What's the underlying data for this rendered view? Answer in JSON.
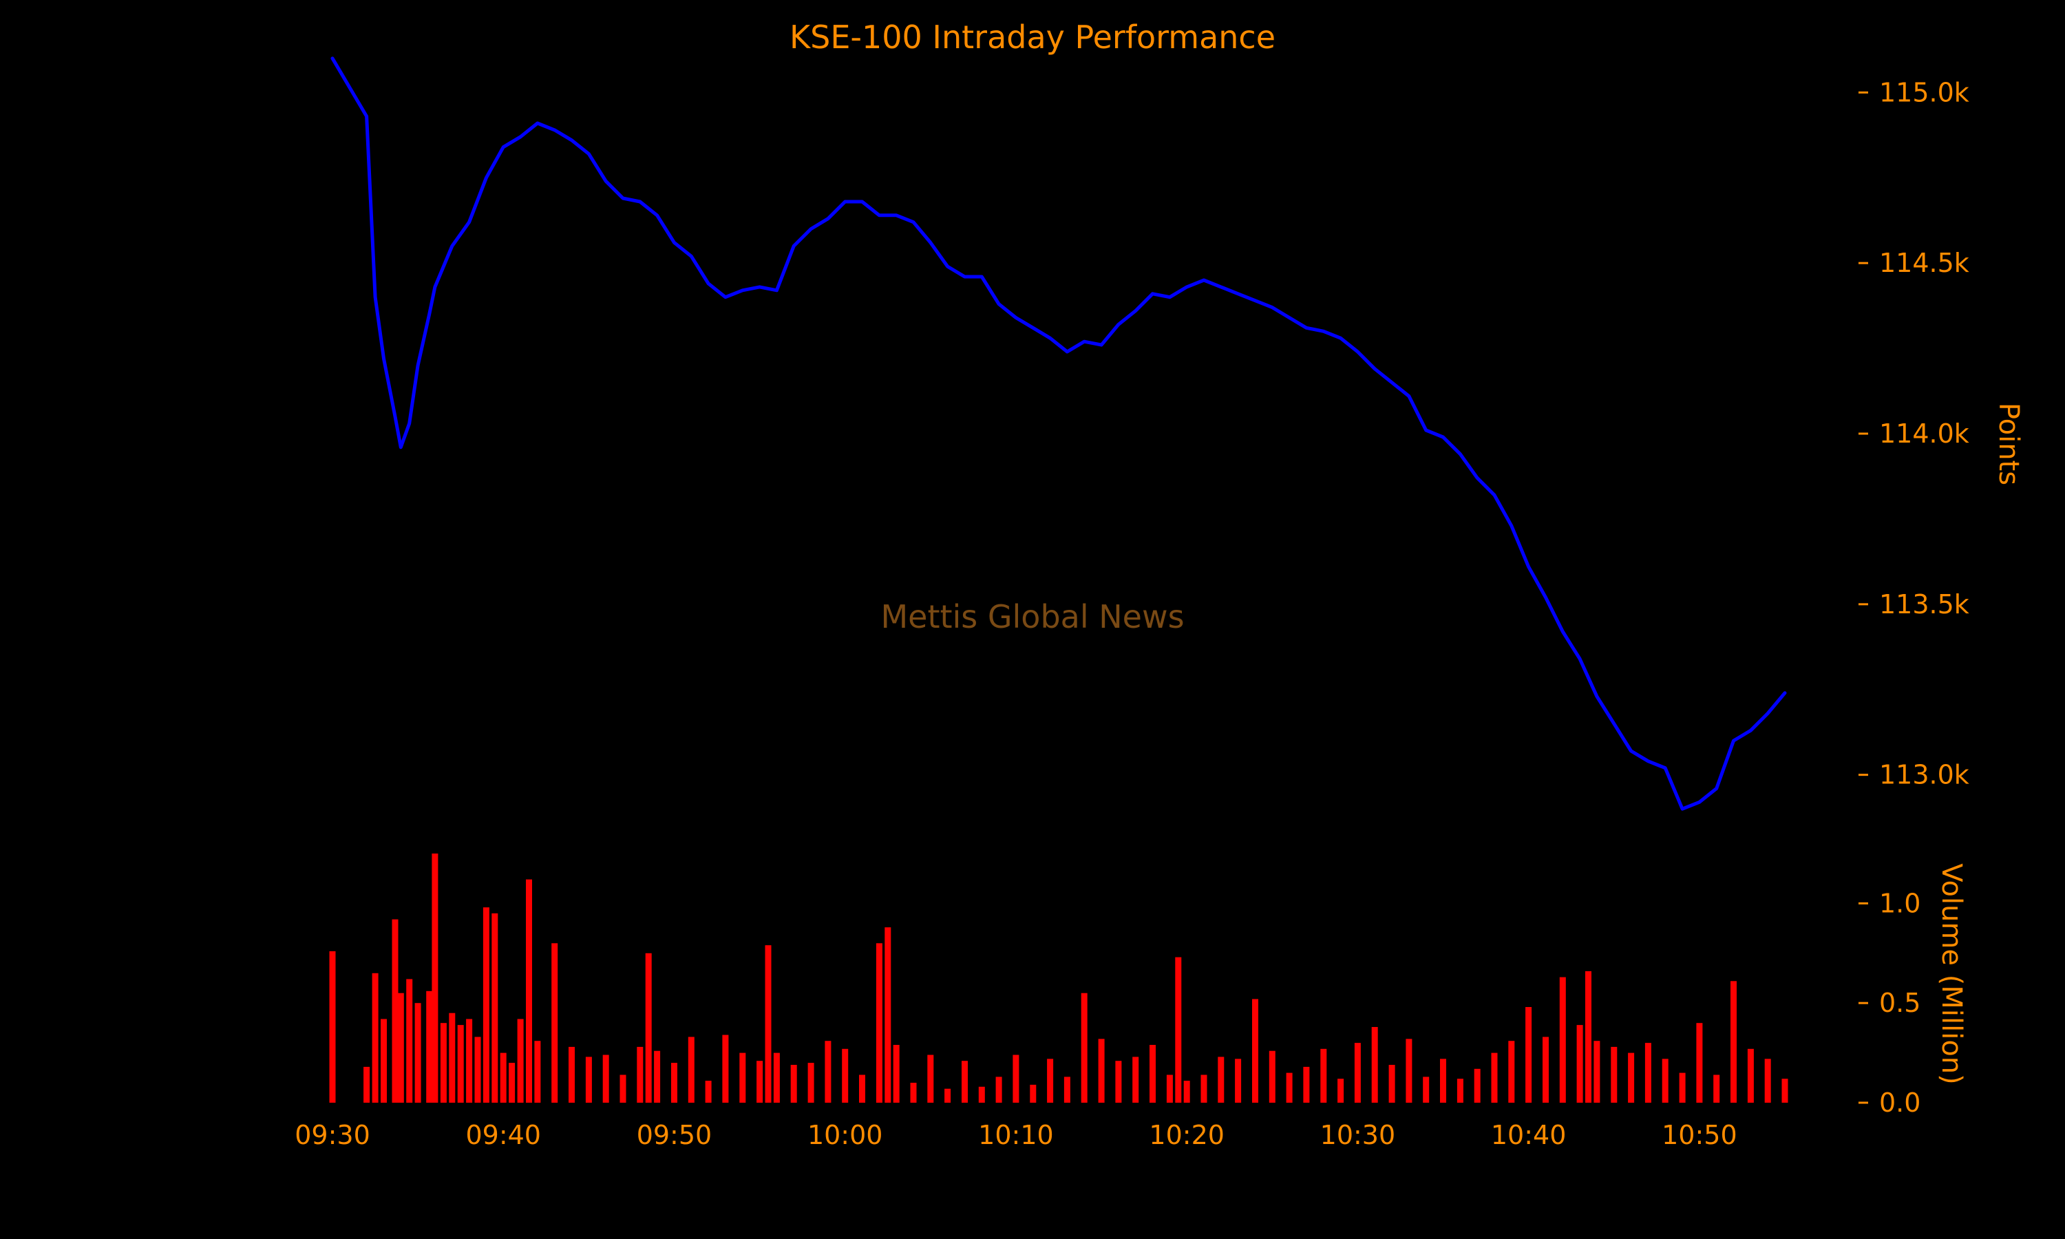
{
  "colors": {
    "background": "#000000",
    "text": "#FF8C00",
    "price_line": "#0000FF",
    "volume_bars": "#FF0000",
    "watermark": "#7A4A14"
  },
  "watermark": "Mettis Global News",
  "chart_data": {
    "type": "line",
    "title": "KSE-100 Intraday Performance",
    "xlabel": "",
    "x_ticks": [
      "09:30",
      "09:40",
      "09:50",
      "10:00",
      "10:10",
      "10:20",
      "10:30",
      "10:40",
      "10:50"
    ],
    "x_range": [
      "09:30",
      "10:55"
    ],
    "grid": false,
    "legend": "none",
    "price": {
      "ylabel": "Points",
      "ylim": [
        112850,
        115150
      ],
      "y_ticks": [
        {
          "value": 113000,
          "label": "113.0k"
        },
        {
          "value": 113500,
          "label": "113.5k"
        },
        {
          "value": 114000,
          "label": "114.0k"
        },
        {
          "value": 114500,
          "label": "114.5k"
        },
        {
          "value": 115000,
          "label": "115.0k"
        }
      ],
      "points": [
        [
          "09:30",
          115100
        ],
        [
          "09:32",
          114930
        ],
        [
          "09:32:30",
          114400
        ],
        [
          "09:33",
          114220
        ],
        [
          "09:33:40",
          114050
        ],
        [
          "09:34",
          113960
        ],
        [
          "09:34:30",
          114030
        ],
        [
          "09:35",
          114200
        ],
        [
          "09:35:40",
          114350
        ],
        [
          "09:36",
          114430
        ],
        [
          "09:37",
          114550
        ],
        [
          "09:38",
          114620
        ],
        [
          "09:39",
          114750
        ],
        [
          "09:40",
          114840
        ],
        [
          "09:41",
          114870
        ],
        [
          "09:42",
          114910
        ],
        [
          "09:43",
          114890
        ],
        [
          "09:44",
          114860
        ],
        [
          "09:45",
          114820
        ],
        [
          "09:46",
          114740
        ],
        [
          "09:47",
          114690
        ],
        [
          "09:48",
          114680
        ],
        [
          "09:49",
          114640
        ],
        [
          "09:50",
          114560
        ],
        [
          "09:51",
          114520
        ],
        [
          "09:52",
          114440
        ],
        [
          "09:53",
          114400
        ],
        [
          "09:54",
          114420
        ],
        [
          "09:55",
          114430
        ],
        [
          "09:56",
          114420
        ],
        [
          "09:57",
          114550
        ],
        [
          "09:58",
          114600
        ],
        [
          "09:59",
          114630
        ],
        [
          "10:00",
          114680
        ],
        [
          "10:01",
          114680
        ],
        [
          "10:02",
          114640
        ],
        [
          "10:03",
          114640
        ],
        [
          "10:04",
          114620
        ],
        [
          "10:05",
          114560
        ],
        [
          "10:06",
          114490
        ],
        [
          "10:07",
          114460
        ],
        [
          "10:08",
          114460
        ],
        [
          "10:09",
          114380
        ],
        [
          "10:10",
          114340
        ],
        [
          "10:11",
          114310
        ],
        [
          "10:12",
          114280
        ],
        [
          "10:13",
          114240
        ],
        [
          "10:14",
          114270
        ],
        [
          "10:15",
          114260
        ],
        [
          "10:16",
          114320
        ],
        [
          "10:17",
          114360
        ],
        [
          "10:18",
          114410
        ],
        [
          "10:19",
          114400
        ],
        [
          "10:20",
          114430
        ],
        [
          "10:21",
          114450
        ],
        [
          "10:22",
          114430
        ],
        [
          "10:23",
          114410
        ],
        [
          "10:24",
          114390
        ],
        [
          "10:25",
          114370
        ],
        [
          "10:26",
          114340
        ],
        [
          "10:27",
          114310
        ],
        [
          "10:28",
          114300
        ],
        [
          "10:29",
          114280
        ],
        [
          "10:30",
          114240
        ],
        [
          "10:31",
          114190
        ],
        [
          "10:32",
          114150
        ],
        [
          "10:33",
          114110
        ],
        [
          "10:34",
          114010
        ],
        [
          "10:35",
          113990
        ],
        [
          "10:36",
          113940
        ],
        [
          "10:37",
          113870
        ],
        [
          "10:38",
          113820
        ],
        [
          "10:39",
          113730
        ],
        [
          "10:40",
          113610
        ],
        [
          "10:41",
          113520
        ],
        [
          "10:42",
          113420
        ],
        [
          "10:43",
          113340
        ],
        [
          "10:44",
          113230
        ],
        [
          "10:45",
          113150
        ],
        [
          "10:46",
          113070
        ],
        [
          "10:47",
          113040
        ],
        [
          "10:48",
          113020
        ],
        [
          "10:49",
          112900
        ],
        [
          "10:50",
          112920
        ],
        [
          "10:51",
          112960
        ],
        [
          "10:52",
          113100
        ],
        [
          "10:53",
          113130
        ],
        [
          "10:54",
          113180
        ],
        [
          "10:55",
          113240
        ]
      ]
    },
    "volume": {
      "ylabel": "Volume (Million)",
      "ylim": [
        0,
        1.25
      ],
      "y_ticks": [
        {
          "value": 0,
          "label": "0.0"
        },
        {
          "value": 0.5,
          "label": "0.5"
        },
        {
          "value": 1.0,
          "label": "1.0"
        }
      ],
      "bars": [
        [
          "09:30",
          0.76
        ],
        [
          "09:32",
          0.18
        ],
        [
          "09:32:30",
          0.65
        ],
        [
          "09:33",
          0.42
        ],
        [
          "09:33:40",
          0.92
        ],
        [
          "09:34",
          0.55
        ],
        [
          "09:34:30",
          0.62
        ],
        [
          "09:35",
          0.5
        ],
        [
          "09:35:40",
          0.56
        ],
        [
          "09:36",
          1.25
        ],
        [
          "09:36:30",
          0.4
        ],
        [
          "09:37",
          0.45
        ],
        [
          "09:37:30",
          0.39
        ],
        [
          "09:38",
          0.42
        ],
        [
          "09:38:30",
          0.33
        ],
        [
          "09:39",
          0.98
        ],
        [
          "09:39:30",
          0.95
        ],
        [
          "09:40",
          0.25
        ],
        [
          "09:40:30",
          0.2
        ],
        [
          "09:41",
          0.42
        ],
        [
          "09:41:30",
          1.12
        ],
        [
          "09:42",
          0.31
        ],
        [
          "09:43",
          0.8
        ],
        [
          "09:44",
          0.28
        ],
        [
          "09:45",
          0.23
        ],
        [
          "09:46",
          0.24
        ],
        [
          "09:47",
          0.14
        ],
        [
          "09:48",
          0.28
        ],
        [
          "09:48:30",
          0.75
        ],
        [
          "09:49",
          0.26
        ],
        [
          "09:50",
          0.2
        ],
        [
          "09:51",
          0.33
        ],
        [
          "09:52",
          0.11
        ],
        [
          "09:53",
          0.34
        ],
        [
          "09:54",
          0.25
        ],
        [
          "09:55",
          0.21
        ],
        [
          "09:55:30",
          0.79
        ],
        [
          "09:56",
          0.25
        ],
        [
          "09:57",
          0.19
        ],
        [
          "09:58",
          0.2
        ],
        [
          "09:59",
          0.31
        ],
        [
          "10:00",
          0.27
        ],
        [
          "10:01",
          0.14
        ],
        [
          "10:02",
          0.8
        ],
        [
          "10:02:30",
          0.88
        ],
        [
          "10:03",
          0.29
        ],
        [
          "10:04",
          0.1
        ],
        [
          "10:05",
          0.24
        ],
        [
          "10:06",
          0.07
        ],
        [
          "10:07",
          0.21
        ],
        [
          "10:08",
          0.08
        ],
        [
          "10:09",
          0.13
        ],
        [
          "10:10",
          0.24
        ],
        [
          "10:11",
          0.09
        ],
        [
          "10:12",
          0.22
        ],
        [
          "10:13",
          0.13
        ],
        [
          "10:14",
          0.55
        ],
        [
          "10:15",
          0.32
        ],
        [
          "10:16",
          0.21
        ],
        [
          "10:17",
          0.23
        ],
        [
          "10:18",
          0.29
        ],
        [
          "10:19",
          0.14
        ],
        [
          "10:19:30",
          0.73
        ],
        [
          "10:20",
          0.11
        ],
        [
          "10:21",
          0.14
        ],
        [
          "10:22",
          0.23
        ],
        [
          "10:23",
          0.22
        ],
        [
          "10:24",
          0.52
        ],
        [
          "10:25",
          0.26
        ],
        [
          "10:26",
          0.15
        ],
        [
          "10:27",
          0.18
        ],
        [
          "10:28",
          0.27
        ],
        [
          "10:29",
          0.12
        ],
        [
          "10:30",
          0.3
        ],
        [
          "10:31",
          0.38
        ],
        [
          "10:32",
          0.19
        ],
        [
          "10:33",
          0.32
        ],
        [
          "10:34",
          0.13
        ],
        [
          "10:35",
          0.22
        ],
        [
          "10:36",
          0.12
        ],
        [
          "10:37",
          0.17
        ],
        [
          "10:38",
          0.25
        ],
        [
          "10:39",
          0.31
        ],
        [
          "10:40",
          0.48
        ],
        [
          "10:41",
          0.33
        ],
        [
          "10:42",
          0.63
        ],
        [
          "10:43",
          0.39
        ],
        [
          "10:43:30",
          0.66
        ],
        [
          "10:44",
          0.31
        ],
        [
          "10:45",
          0.28
        ],
        [
          "10:46",
          0.25
        ],
        [
          "10:47",
          0.3
        ],
        [
          "10:48",
          0.22
        ],
        [
          "10:49",
          0.15
        ],
        [
          "10:50",
          0.4
        ],
        [
          "10:51",
          0.14
        ],
        [
          "10:52",
          0.61
        ],
        [
          "10:53",
          0.27
        ],
        [
          "10:54",
          0.22
        ],
        [
          "10:55",
          0.12
        ]
      ]
    }
  }
}
